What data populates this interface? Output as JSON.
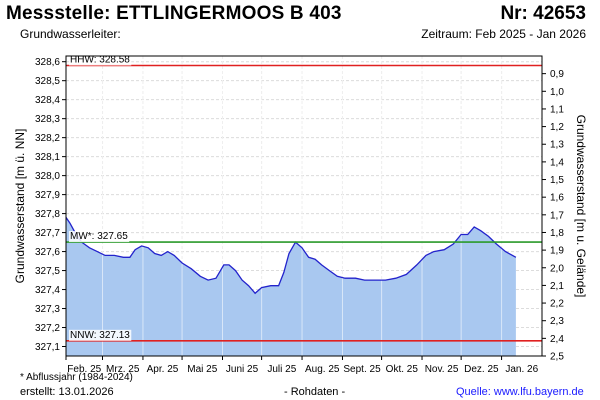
{
  "header": {
    "title_left": "Messstelle: ETTLINGERMOOS B 403",
    "title_right": "Nr: 42653",
    "subtitle_left": "Grundwasserleiter:",
    "subtitle_right": "Zeitraum: Feb 2025 - Jan 2026"
  },
  "footer": {
    "note": "* Abflussjahr (1984-2024)",
    "created": "erstellt:  13.01.2026",
    "raw": "- Rohdaten -",
    "source": "Quelle:  www.lfu.bayern.de"
  },
  "chart_data": {
    "type": "area",
    "ylabel_left": "Grundwasserstand [m ü. NN]",
    "ylabel_right": "Grundwasserstand [m u. Gelände]",
    "ylim": [
      327.05,
      328.63
    ],
    "right_axis_ylim": [
      2.5,
      0.8
    ],
    "yticks_left": [
      "328,6",
      "328,5",
      "328,4",
      "328,3",
      "328,2",
      "328,1",
      "328,0",
      "327,9",
      "327,8",
      "327,7",
      "327,6",
      "327,5",
      "327,4",
      "327,3",
      "327,2",
      "327,1"
    ],
    "yticks_right": [
      "0,9",
      "1,0",
      "1,1",
      "1,2",
      "1,3",
      "1,4",
      "1,5",
      "1,6",
      "1,7",
      "1,8",
      "1,9",
      "2,0",
      "2,1",
      "2,2",
      "2,3",
      "2,4",
      "2,5"
    ],
    "xticks": [
      "Feb. 25",
      "Mrz. 25",
      "Apr. 25",
      "Mai 25",
      "Juni 25",
      "Juli 25",
      "Aug. 25",
      "Sept. 25",
      "Okt. 25",
      "Nov. 25",
      "Dez. 25",
      "Jan. 26"
    ],
    "grid": true,
    "reference_lines": [
      {
        "label": "HHW: 328.58",
        "value": 328.58,
        "color": "#e02020"
      },
      {
        "label": "MW*: 327.65",
        "value": 327.65,
        "color": "#2a9a2a"
      },
      {
        "label": "NNW: 327.13",
        "value": 327.13,
        "color": "#e02020"
      }
    ],
    "series": [
      {
        "color": "#2323cc",
        "fill": "#a9c8f0",
        "points": [
          [
            "2025-02-01",
            327.78
          ],
          [
            "2025-02-04",
            327.75
          ],
          [
            "2025-02-08",
            327.7
          ],
          [
            "2025-02-13",
            327.65
          ],
          [
            "2025-02-19",
            327.62
          ],
          [
            "2025-02-25",
            327.6
          ],
          [
            "2025-03-03",
            327.58
          ],
          [
            "2025-03-10",
            327.58
          ],
          [
            "2025-03-17",
            327.57
          ],
          [
            "2025-03-22",
            327.57
          ],
          [
            "2025-03-26",
            327.61
          ],
          [
            "2025-03-31",
            327.63
          ],
          [
            "2025-04-05",
            327.62
          ],
          [
            "2025-04-10",
            327.59
          ],
          [
            "2025-04-15",
            327.58
          ],
          [
            "2025-04-20",
            327.6
          ],
          [
            "2025-04-25",
            327.58
          ],
          [
            "2025-05-01",
            327.54
          ],
          [
            "2025-05-08",
            327.51
          ],
          [
            "2025-05-15",
            327.47
          ],
          [
            "2025-05-21",
            327.45
          ],
          [
            "2025-05-27",
            327.46
          ],
          [
            "2025-06-02",
            327.53
          ],
          [
            "2025-06-06",
            327.53
          ],
          [
            "2025-06-11",
            327.5
          ],
          [
            "2025-06-16",
            327.45
          ],
          [
            "2025-06-21",
            327.42
          ],
          [
            "2025-06-26",
            327.38
          ],
          [
            "2025-07-01",
            327.41
          ],
          [
            "2025-07-08",
            327.42
          ],
          [
            "2025-07-14",
            327.42
          ],
          [
            "2025-07-18",
            327.49
          ],
          [
            "2025-07-22",
            327.59
          ],
          [
            "2025-07-27",
            327.65
          ],
          [
            "2025-08-01",
            327.62
          ],
          [
            "2025-08-06",
            327.57
          ],
          [
            "2025-08-11",
            327.56
          ],
          [
            "2025-08-16",
            327.53
          ],
          [
            "2025-08-22",
            327.5
          ],
          [
            "2025-08-28",
            327.47
          ],
          [
            "2025-09-03",
            327.46
          ],
          [
            "2025-09-11",
            327.46
          ],
          [
            "2025-09-18",
            327.45
          ],
          [
            "2025-09-26",
            327.45
          ],
          [
            "2025-10-04",
            327.45
          ],
          [
            "2025-10-12",
            327.46
          ],
          [
            "2025-10-20",
            327.48
          ],
          [
            "2025-10-28",
            327.53
          ],
          [
            "2025-11-04",
            327.58
          ],
          [
            "2025-11-10",
            327.6
          ],
          [
            "2025-11-18",
            327.61
          ],
          [
            "2025-11-25",
            327.64
          ],
          [
            "2025-12-01",
            327.69
          ],
          [
            "2025-12-06",
            327.69
          ],
          [
            "2025-12-11",
            327.73
          ],
          [
            "2025-12-16",
            327.71
          ],
          [
            "2025-12-22",
            327.68
          ],
          [
            "2025-12-28",
            327.64
          ],
          [
            "2026-01-04",
            327.6
          ],
          [
            "2026-01-12",
            327.57
          ]
        ]
      }
    ]
  }
}
